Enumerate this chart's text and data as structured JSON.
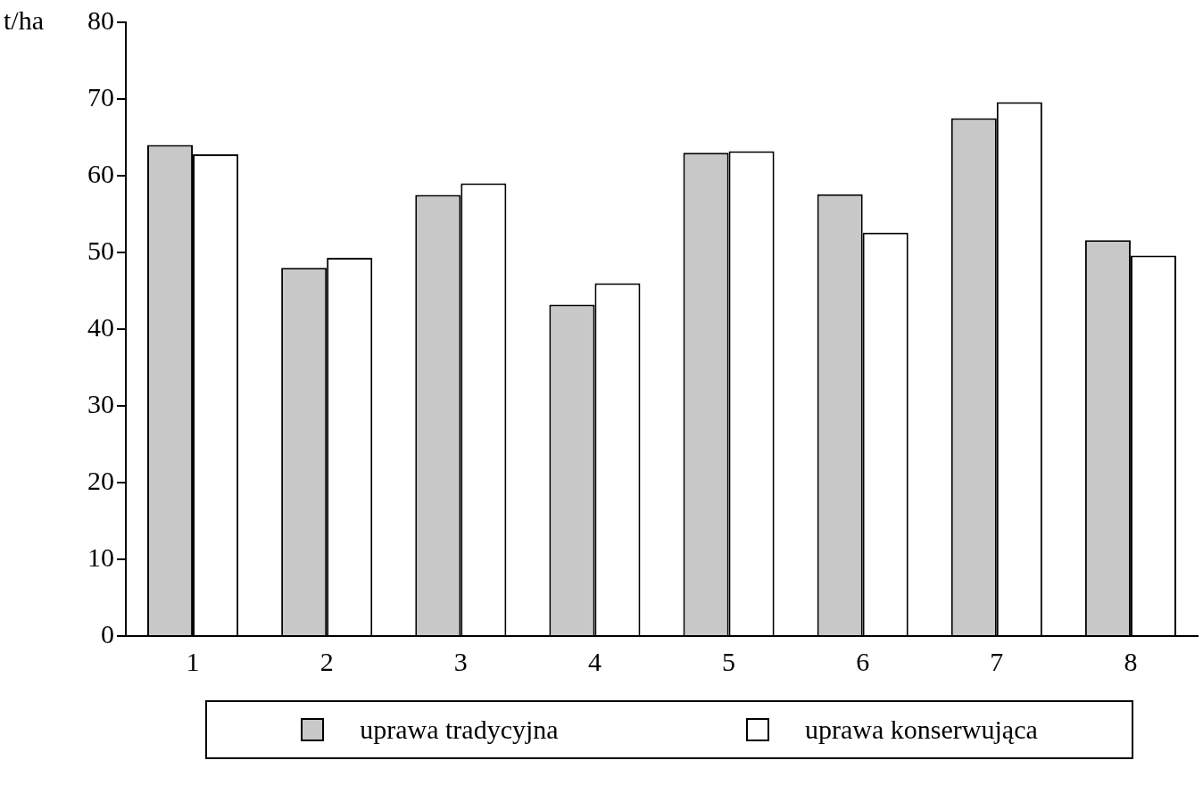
{
  "chart_data": {
    "type": "bar",
    "ylabel": "t/ha",
    "categories": [
      "1",
      "2",
      "3",
      "4",
      "5",
      "6",
      "7",
      "8"
    ],
    "series": [
      {
        "name": "uprawa tradycyjna",
        "color": "#c8c8c8",
        "values": [
          64,
          48,
          57.5,
          43.2,
          63,
          57.6,
          67.5,
          51.6
        ]
      },
      {
        "name": "uprawa konserwująca",
        "color": "#ffffff",
        "values": [
          62.8,
          49.3,
          59,
          46,
          63.2,
          52.6,
          69.6,
          49.6
        ]
      }
    ],
    "ylim": [
      0,
      80
    ],
    "yticks": [
      0,
      10,
      20,
      30,
      40,
      50,
      60,
      70,
      80
    ],
    "grid": false,
    "legend": "bottom"
  }
}
